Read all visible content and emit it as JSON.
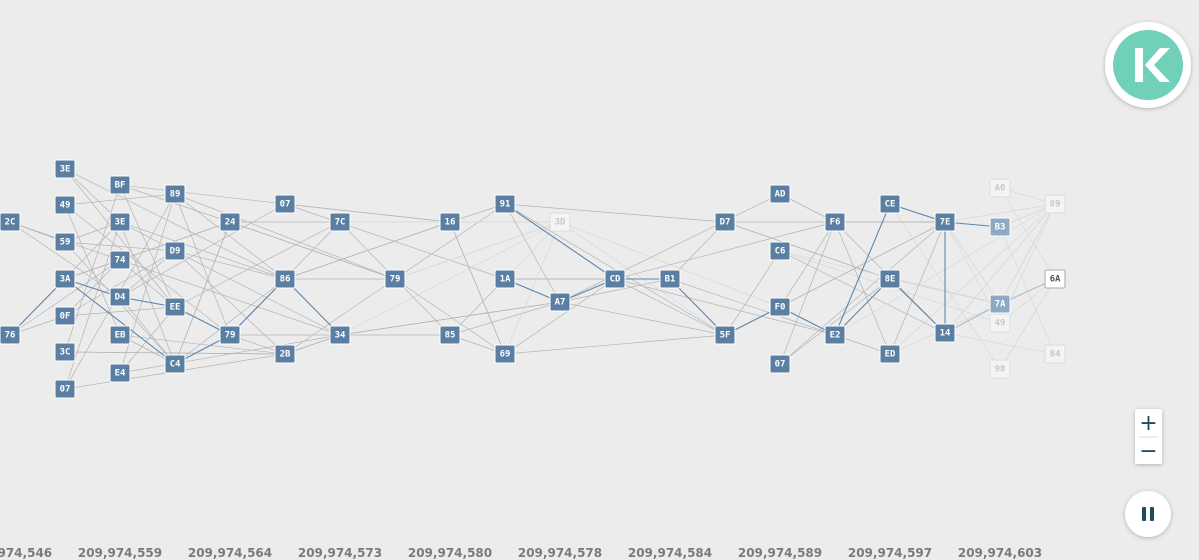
{
  "blocks": [
    "2C",
    "76",
    "3E",
    "49",
    "59",
    "3A",
    "0F",
    "3C",
    "07",
    "BF",
    "3E",
    "74",
    "D4",
    "EB",
    "E4",
    "89",
    "D9",
    "EE",
    "C4",
    "24",
    "79",
    "07",
    "86",
    "2B",
    "7C",
    "34",
    "79",
    "16",
    "85",
    "91",
    "1A",
    "69",
    "3D",
    "A7",
    "CD",
    "B1",
    "D7",
    "5F",
    "AD",
    "C6",
    "F0",
    "07",
    "F6",
    "E2",
    "CE",
    "8E",
    "ED",
    "7E",
    "14",
    "A0",
    "B3",
    "7A",
    "49",
    "98",
    "89",
    "6A",
    "84"
  ],
  "axis_labels": [
    "209,974,546",
    "209,974,559",
    "209,974,564",
    "209,974,573",
    "209,974,580",
    "209,974,578",
    "209,974,584",
    "209,974,589",
    "209,974,597",
    "209,974,603"
  ],
  "controls": {
    "zoom_in": "+",
    "zoom_out": "−"
  }
}
